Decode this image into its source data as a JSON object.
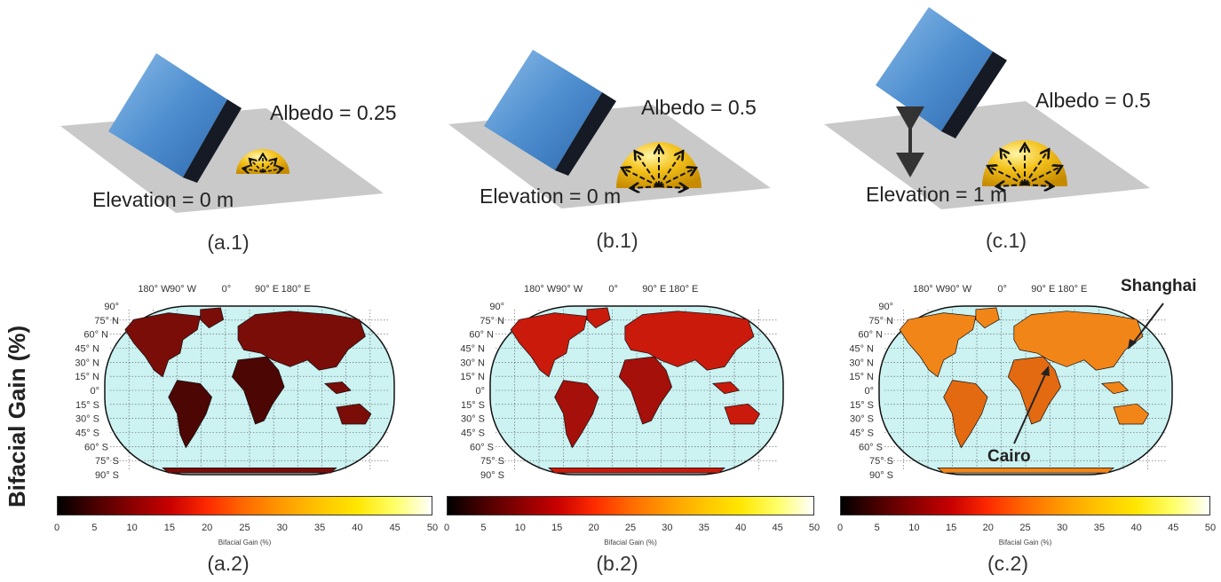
{
  "panels": [
    {
      "albedo_text": "Albedo = 0.25",
      "elevation_text": "Elevation = 0 m",
      "scene_caption": "(a.1)",
      "map_caption": "(a.2)",
      "land_color": "#7a0d08",
      "land_color_dark": "#4c0604"
    },
    {
      "albedo_text": "Albedo = 0.5",
      "elevation_text": "Elevation = 0 m",
      "scene_caption": "(b.1)",
      "map_caption": "(b.2)",
      "land_color": "#c91a0c",
      "land_color_dark": "#a5100a"
    },
    {
      "albedo_text": "Albedo = 0.5",
      "elevation_text": "Elevation = 1 m",
      "scene_caption": "(c.1)",
      "map_caption": "(c.2)",
      "land_color": "#f28518",
      "land_color_dark": "#e36a10"
    }
  ],
  "y_axis_label": "Bifacial Gain (%)",
  "map": {
    "longitude_ticks": [
      "180° W",
      "90° W",
      "0°",
      "90° E",
      "180° E"
    ],
    "latitude_ticks": [
      "90°",
      "75° N",
      "60° N",
      "45° N",
      "30° N",
      "15° N",
      "0°",
      "15° S",
      "30° S",
      "45° S",
      "60° S",
      "75° S",
      "90° S"
    ],
    "ocean_color": "#ccf2f2"
  },
  "colorbar": {
    "title": "Bifacial Gain (%)",
    "ticks": [
      "0",
      "5",
      "10",
      "15",
      "20",
      "25",
      "30",
      "35",
      "40",
      "45",
      "50"
    ],
    "min": 0,
    "max": 50
  },
  "annotations": {
    "city1": "Shanghai",
    "city2": "Cairo"
  }
}
